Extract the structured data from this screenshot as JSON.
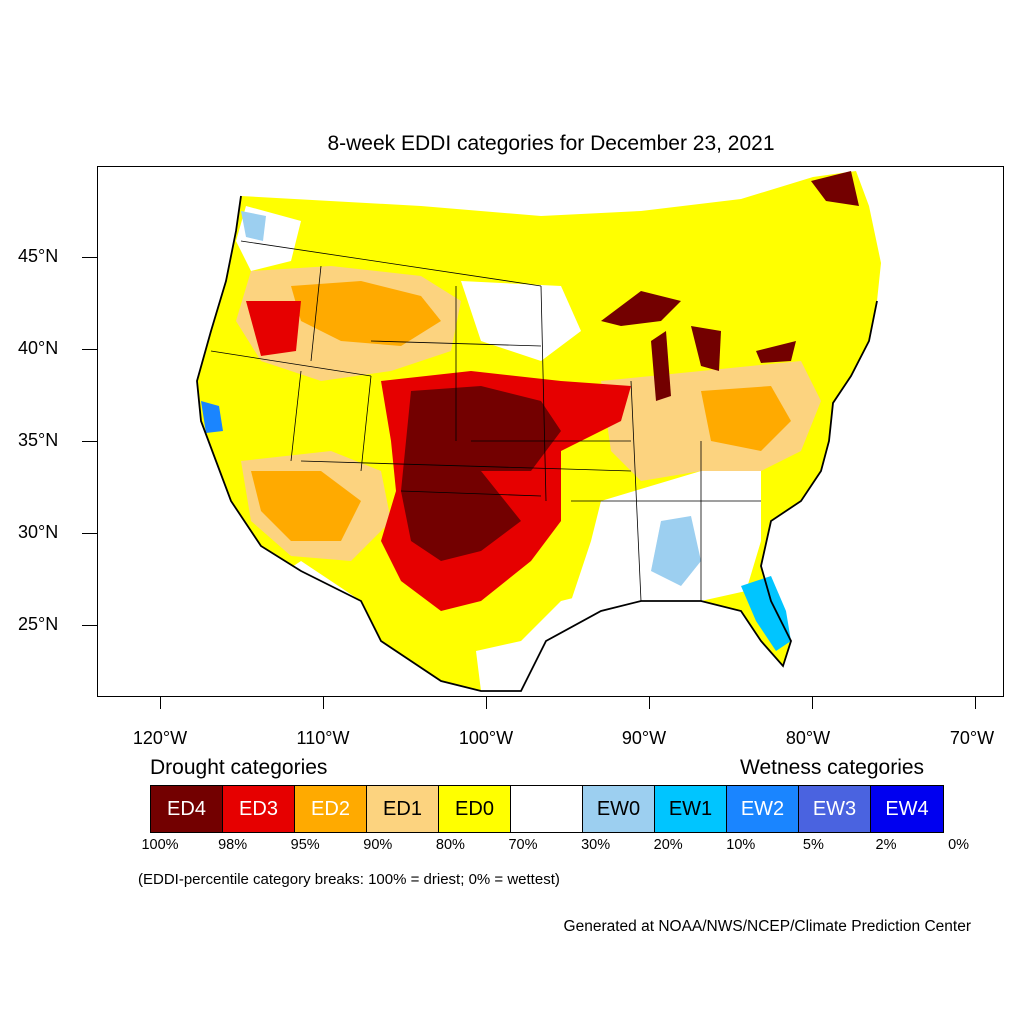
{
  "title": "8-week EDDI categories for December 23, 2021",
  "latitude_labels": [
    "45°N",
    "40°N",
    "35°N",
    "30°N",
    "25°N"
  ],
  "longitude_labels": [
    "120°W",
    "110°W",
    "100°W",
    "90°W",
    "80°W",
    "70°W"
  ],
  "legend": {
    "drought_heading": "Drought categories",
    "wetness_heading": "Wetness categories",
    "categories": [
      {
        "label": "ED4",
        "color": "#730000",
        "text_color": "#ffffff"
      },
      {
        "label": "ED3",
        "color": "#e60000",
        "text_color": "#ffffff"
      },
      {
        "label": "ED2",
        "color": "#ffaa00",
        "text_color": "#ffffff"
      },
      {
        "label": "ED1",
        "color": "#fcd37f",
        "text_color": "#000000"
      },
      {
        "label": "ED0",
        "color": "#ffff00",
        "text_color": "#000000"
      },
      {
        "label": "",
        "color": "#ffffff",
        "text_color": "#000000"
      },
      {
        "label": "EW0",
        "color": "#9ccff0",
        "text_color": "#000000"
      },
      {
        "label": "EW1",
        "color": "#00c5ff",
        "text_color": "#000000"
      },
      {
        "label": "EW2",
        "color": "#1a85ff",
        "text_color": "#ffffff"
      },
      {
        "label": "EW3",
        "color": "#4a63e0",
        "text_color": "#ffffff"
      },
      {
        "label": "EW4",
        "color": "#0000f0",
        "text_color": "#ffffff"
      }
    ],
    "percentile_breaks": [
      "100%",
      "98%",
      "95%",
      "90%",
      "80%",
      "70%",
      "30%",
      "20%",
      "10%",
      "5%",
      "2%",
      "0%"
    ]
  },
  "note": "(EDDI-percentile category breaks: 100% = driest; 0% = wettest)",
  "credit": "Generated at NOAA/NWS/NCEP/Climate Prediction Center"
}
